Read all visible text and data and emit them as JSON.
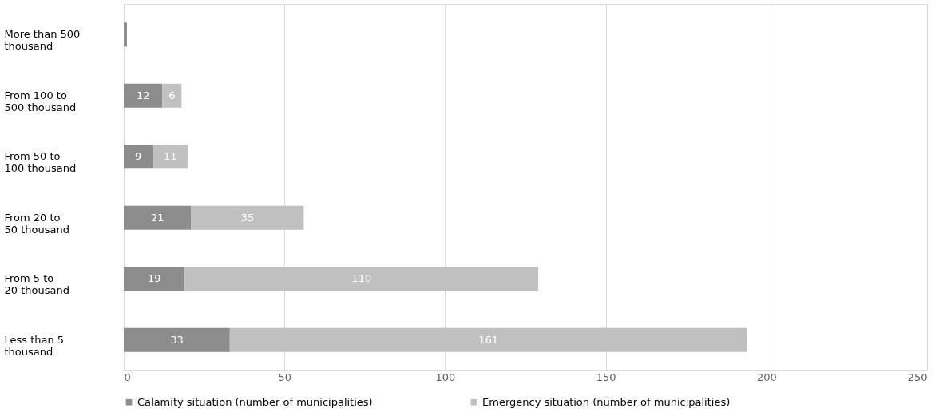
{
  "chart_data": {
    "type": "bar",
    "orientation": "horizontal",
    "stacked": true,
    "categories": [
      "More than 500\nthousand",
      "From 100 to\n500 thousand",
      "From 50 to\n100 thousand",
      "From 20 to\n50 thousand",
      "From 5 to\n20 thousand",
      "Less than 5\nthousand"
    ],
    "series": [
      {
        "name": "Calamity situation (number of municipalities)",
        "color": "#8c8c8c",
        "values": [
          1,
          12,
          9,
          21,
          19,
          33
        ],
        "value_labels": [
          null,
          "12",
          "9",
          "21",
          "19",
          "33"
        ]
      },
      {
        "name": "Emergency situation (number of municipalities)",
        "color": "#c0c0c0",
        "values": [
          0,
          6,
          11,
          35,
          110,
          161
        ],
        "value_labels": [
          null,
          "6",
          "11",
          "35",
          "110",
          "161"
        ]
      }
    ],
    "xlim": [
      0,
      250
    ],
    "xticks": [
      0,
      50,
      100,
      150,
      200,
      250
    ],
    "grid": "x",
    "legend": "bottom"
  }
}
